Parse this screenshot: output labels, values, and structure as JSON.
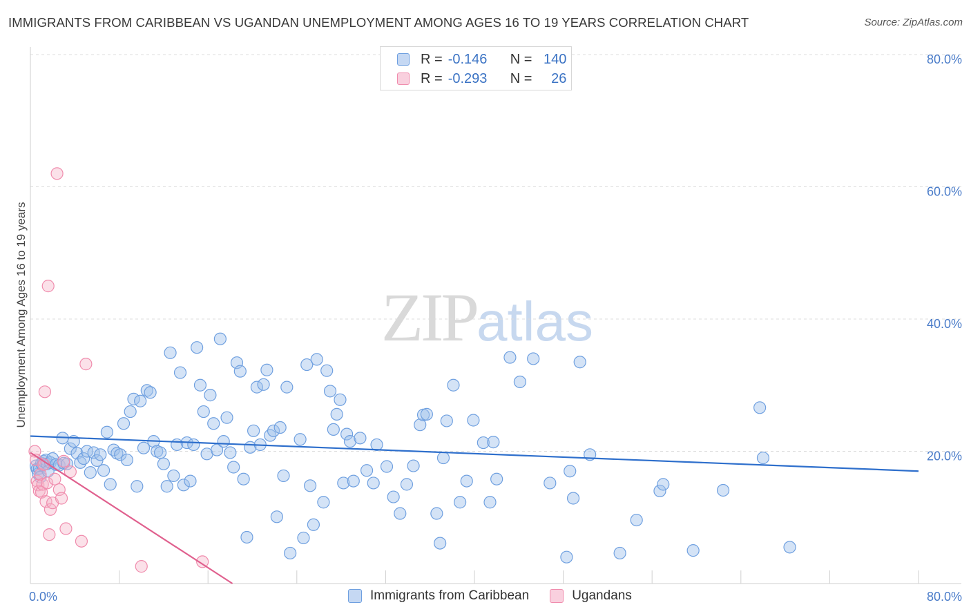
{
  "header": {
    "title": "IMMIGRANTS FROM CARIBBEAN VS UGANDAN UNEMPLOYMENT AMONG AGES 16 TO 19 YEARS CORRELATION CHART",
    "source": "Source: ZipAtlas.com"
  },
  "watermark": {
    "zip": "ZIP",
    "atlas": "atlas"
  },
  "legend": {
    "rows": [
      {
        "r_label": "R =",
        "r_value": "-0.146",
        "n_label": "N =",
        "n_value": "140"
      },
      {
        "r_label": "R =",
        "r_value": "-0.293",
        "n_label": "N =",
        "n_value": "26"
      }
    ]
  },
  "chart_data": {
    "type": "scatter",
    "title": "IMMIGRANTS FROM CARIBBEAN VS UGANDAN UNEMPLOYMENT AMONG AGES 16 TO 19 YEARS CORRELATION CHART",
    "xlabel": "",
    "ylabel": "Unemployment Among Ages 16 to 19 years",
    "xlim": [
      0,
      80
    ],
    "ylim": [
      0,
      80
    ],
    "x_tick_labels": [
      "0.0%",
      "80.0%"
    ],
    "y_tick_labels": [
      "20.0%",
      "40.0%",
      "60.0%",
      "80.0%"
    ],
    "y_ticks": [
      20,
      40,
      60,
      80
    ],
    "grid": true,
    "colors": {
      "caribbean": "#6fa0e0",
      "ugandans": "#f08cad",
      "caribbean_line": "#2e6fcc",
      "ugandans_line": "#e0608e"
    },
    "series": [
      {
        "name": "Immigrants from Caribbean",
        "trend": {
          "x": [
            0,
            80
          ],
          "y": [
            22.3,
            17.0
          ]
        },
        "points": [
          [
            0.5,
            17.8
          ],
          [
            0.6,
            17.3
          ],
          [
            0.7,
            16.6
          ],
          [
            0.8,
            17.4
          ],
          [
            0.9,
            16.1
          ],
          [
            1.0,
            18.2
          ],
          [
            1.1,
            17.9
          ],
          [
            1.2,
            18.5
          ],
          [
            1.4,
            18.7
          ],
          [
            1.5,
            18.1
          ],
          [
            1.6,
            17.0
          ],
          [
            1.8,
            18.3
          ],
          [
            2.0,
            18.9
          ],
          [
            2.3,
            18.0
          ],
          [
            2.6,
            17.9
          ],
          [
            2.9,
            22.0
          ],
          [
            3.0,
            18.2
          ],
          [
            3.3,
            18.1
          ],
          [
            3.6,
            20.4
          ],
          [
            3.9,
            21.5
          ],
          [
            4.2,
            19.7
          ],
          [
            4.5,
            18.3
          ],
          [
            4.8,
            18.9
          ],
          [
            5.1,
            20.0
          ],
          [
            5.4,
            16.8
          ],
          [
            5.7,
            19.8
          ],
          [
            6.0,
            18.6
          ],
          [
            6.3,
            19.5
          ],
          [
            6.6,
            17.1
          ],
          [
            6.9,
            22.9
          ],
          [
            7.2,
            15.0
          ],
          [
            7.5,
            20.2
          ],
          [
            7.8,
            19.7
          ],
          [
            8.1,
            19.5
          ],
          [
            8.4,
            24.2
          ],
          [
            8.7,
            18.7
          ],
          [
            9.0,
            26.0
          ],
          [
            9.3,
            27.9
          ],
          [
            9.6,
            14.7
          ],
          [
            9.9,
            27.6
          ],
          [
            10.2,
            20.5
          ],
          [
            10.5,
            29.2
          ],
          [
            10.8,
            28.9
          ],
          [
            11.1,
            21.5
          ],
          [
            11.4,
            20.0
          ],
          [
            11.7,
            19.8
          ],
          [
            12.0,
            18.1
          ],
          [
            12.3,
            14.7
          ],
          [
            12.6,
            34.9
          ],
          [
            12.9,
            16.3
          ],
          [
            13.2,
            21.0
          ],
          [
            13.5,
            31.9
          ],
          [
            13.8,
            14.9
          ],
          [
            14.1,
            21.3
          ],
          [
            14.4,
            15.5
          ],
          [
            14.7,
            21.0
          ],
          [
            15.0,
            35.7
          ],
          [
            15.3,
            30.0
          ],
          [
            15.6,
            26.0
          ],
          [
            15.9,
            19.6
          ],
          [
            16.2,
            28.5
          ],
          [
            16.5,
            24.2
          ],
          [
            16.8,
            20.2
          ],
          [
            17.1,
            37.0
          ],
          [
            17.4,
            21.5
          ],
          [
            17.7,
            25.1
          ],
          [
            18.0,
            19.8
          ],
          [
            18.3,
            17.6
          ],
          [
            18.6,
            33.4
          ],
          [
            18.9,
            32.1
          ],
          [
            19.2,
            15.8
          ],
          [
            19.5,
            7.0
          ],
          [
            19.8,
            20.6
          ],
          [
            20.1,
            23.1
          ],
          [
            20.4,
            29.7
          ],
          [
            20.7,
            21.0
          ],
          [
            21.0,
            30.1
          ],
          [
            21.3,
            32.3
          ],
          [
            21.6,
            22.4
          ],
          [
            21.9,
            23.1
          ],
          [
            22.2,
            10.1
          ],
          [
            22.5,
            23.6
          ],
          [
            22.8,
            16.3
          ],
          [
            23.1,
            29.7
          ],
          [
            23.4,
            4.6
          ],
          [
            24.3,
            21.8
          ],
          [
            24.6,
            6.9
          ],
          [
            24.9,
            33.1
          ],
          [
            25.2,
            14.8
          ],
          [
            25.5,
            8.9
          ],
          [
            25.8,
            33.9
          ],
          [
            26.4,
            12.3
          ],
          [
            26.7,
            32.2
          ],
          [
            27.0,
            29.1
          ],
          [
            27.3,
            23.3
          ],
          [
            27.6,
            25.6
          ],
          [
            27.9,
            27.8
          ],
          [
            28.2,
            15.2
          ],
          [
            28.5,
            22.6
          ],
          [
            28.8,
            21.5
          ],
          [
            29.1,
            15.5
          ],
          [
            29.7,
            22.0
          ],
          [
            30.3,
            17.1
          ],
          [
            30.9,
            15.2
          ],
          [
            31.2,
            21.0
          ],
          [
            32.1,
            17.7
          ],
          [
            32.7,
            13.1
          ],
          [
            33.3,
            10.6
          ],
          [
            33.9,
            15.0
          ],
          [
            34.5,
            17.8
          ],
          [
            35.1,
            24.0
          ],
          [
            35.4,
            25.5
          ],
          [
            35.7,
            25.6
          ],
          [
            36.6,
            10.6
          ],
          [
            36.9,
            6.1
          ],
          [
            37.2,
            19.0
          ],
          [
            37.5,
            24.6
          ],
          [
            38.1,
            30.0
          ],
          [
            38.7,
            12.3
          ],
          [
            39.3,
            15.5
          ],
          [
            39.9,
            24.7
          ],
          [
            40.8,
            21.3
          ],
          [
            41.4,
            12.3
          ],
          [
            41.7,
            21.4
          ],
          [
            42.0,
            15.8
          ],
          [
            43.2,
            34.2
          ],
          [
            44.1,
            30.5
          ],
          [
            45.3,
            34.0
          ],
          [
            46.8,
            15.2
          ],
          [
            48.3,
            4.0
          ],
          [
            48.6,
            17.0
          ],
          [
            48.9,
            12.9
          ],
          [
            49.5,
            33.5
          ],
          [
            50.4,
            19.5
          ],
          [
            53.1,
            4.6
          ],
          [
            54.6,
            9.6
          ],
          [
            56.7,
            14.0
          ],
          [
            57.0,
            15.0
          ],
          [
            59.7,
            5.0
          ],
          [
            62.4,
            14.1
          ],
          [
            65.7,
            26.6
          ],
          [
            66.0,
            19.0
          ],
          [
            68.4,
            5.5
          ]
        ]
      },
      {
        "name": "Ugandans",
        "trend": {
          "x": [
            0,
            18.2
          ],
          "y": [
            19.8,
            0
          ]
        },
        "points": [
          [
            0.4,
            20.0
          ],
          [
            0.5,
            18.7
          ],
          [
            0.6,
            15.5
          ],
          [
            0.7,
            14.9
          ],
          [
            0.8,
            14.0
          ],
          [
            0.9,
            16.5
          ],
          [
            1.0,
            13.8
          ],
          [
            1.1,
            15.0
          ],
          [
            1.2,
            18.0
          ],
          [
            1.3,
            29.0
          ],
          [
            1.4,
            12.4
          ],
          [
            1.5,
            15.2
          ],
          [
            1.6,
            45.0
          ],
          [
            1.7,
            7.4
          ],
          [
            1.8,
            11.2
          ],
          [
            2.0,
            12.2
          ],
          [
            2.2,
            15.8
          ],
          [
            2.4,
            62.0
          ],
          [
            2.6,
            14.2
          ],
          [
            2.8,
            12.9
          ],
          [
            3.0,
            18.5
          ],
          [
            3.2,
            8.3
          ],
          [
            3.6,
            16.9
          ],
          [
            4.6,
            6.4
          ],
          [
            5.0,
            33.2
          ],
          [
            10.0,
            2.6
          ],
          [
            15.5,
            3.3
          ]
        ]
      }
    ]
  },
  "bottom_legend": {
    "items": [
      {
        "label": "Immigrants from Caribbean"
      },
      {
        "label": "Ugandans"
      }
    ]
  }
}
